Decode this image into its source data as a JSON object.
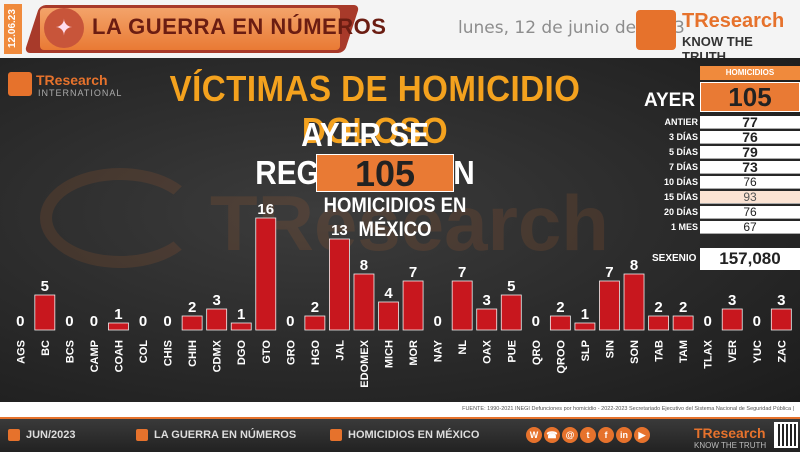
{
  "header": {
    "date_vertical": "12.06.23",
    "title": "LA GUERRA EN NÚMEROS",
    "date": "lunes, 12 de junio de 2023",
    "brand_name": "TResearch",
    "brand_tagline": "KNOW THE TRUTH"
  },
  "logo_intl": {
    "name": "TResearch",
    "sub": "INTERNATIONAL"
  },
  "watermark": "TResearch",
  "main": {
    "title": "VÍCTIMAS DE HOMICIDIO DOLOSO",
    "subtitle": "AYER SE REGISTRARON",
    "total": "105",
    "caption": "HOMICIDIOS EN MÉXICO"
  },
  "stats": {
    "header": "HOMICIDIOS",
    "ayer_label": "AYER",
    "ayer_value": "105",
    "rows": [
      {
        "label": "ANTIER",
        "value": "77",
        "style": "bold"
      },
      {
        "label": "3 DÍAS",
        "value": "76",
        "style": "bold"
      },
      {
        "label": "5 DÍAS",
        "value": "79",
        "style": "bold"
      },
      {
        "label": "7 DÍAS",
        "value": "73",
        "style": "bold"
      },
      {
        "label": "10 DÍAS",
        "value": "76",
        "style": "normal"
      },
      {
        "label": "15 DÍAS",
        "value": "93",
        "style": "shade"
      },
      {
        "label": "20 DÍAS",
        "value": "76",
        "style": "normal"
      },
      {
        "label": "1 MES",
        "value": "67",
        "style": "normal"
      }
    ],
    "sexenio_label": "SEXENIO",
    "sexenio_value": "157,080"
  },
  "chart_data": {
    "type": "bar",
    "categories": [
      "AGS",
      "BC",
      "BCS",
      "CAMP",
      "COAH",
      "COL",
      "CHIS",
      "CHIH",
      "CDMX",
      "DGO",
      "GTO",
      "GRO",
      "HGO",
      "JAL",
      "EDOMEX",
      "MICH",
      "MOR",
      "NAY",
      "NL",
      "OAX",
      "PUE",
      "QRO",
      "QROO",
      "SLP",
      "SIN",
      "SON",
      "TAB",
      "TAM",
      "TLAX",
      "VER",
      "YUC",
      "ZAC"
    ],
    "values": [
      0,
      5,
      0,
      0,
      1,
      0,
      0,
      2,
      3,
      1,
      16,
      0,
      2,
      13,
      8,
      4,
      7,
      0,
      7,
      3,
      5,
      0,
      2,
      1,
      7,
      8,
      2,
      2,
      0,
      3,
      0,
      3
    ],
    "bar_color": "#c8171e",
    "ylim": [
      0,
      16
    ]
  },
  "source": "FUENTE: 1990-2021 INEGI Defunciones por homicidio - 2022-2023 Secretariado Ejecutivo del Sistema Nacional de Seguridad Pública |",
  "footer": {
    "month": "JUN/2023",
    "section": "LA GUERRA EN NÚMEROS",
    "topic": "HOMICIDIOS EN MÉXICO",
    "brand_name": "TResearch",
    "brand_tagline": "KNOW THE TRUTH",
    "social_icons": [
      "whatsapp-icon",
      "phone-icon",
      "mail-icon",
      "twitter-icon",
      "facebook-icon",
      "linkedin-icon",
      "youtube-icon"
    ]
  },
  "colors": {
    "accent": "#e6722c",
    "title_gold": "#f4a21e",
    "bar_red": "#c8171e"
  }
}
